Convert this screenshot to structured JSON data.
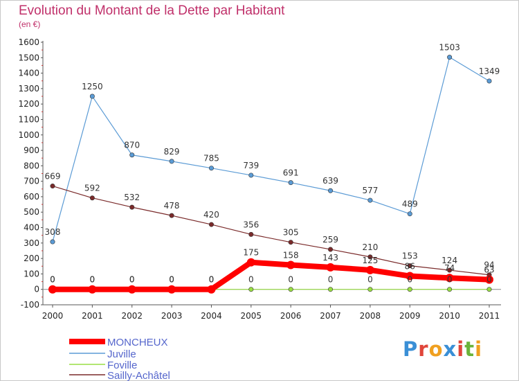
{
  "title": "Evolution du Montant de la Dette par Habitant",
  "subtitle": "(en €)",
  "chart_data": {
    "type": "line",
    "categories": [
      "2000",
      "2001",
      "2002",
      "2003",
      "2004",
      "2005",
      "2006",
      "2007",
      "2008",
      "2009",
      "2010",
      "2011"
    ],
    "ylim": [
      -100,
      1600
    ],
    "yticks": [
      -100,
      0,
      100,
      200,
      300,
      400,
      500,
      600,
      700,
      800,
      900,
      1000,
      1100,
      1200,
      1300,
      1400,
      1500,
      1600
    ],
    "grid": false,
    "legend_position": "bottom-left",
    "series": [
      {
        "name": "MONCHEUX",
        "color": "#ff0000",
        "values": [
          0,
          0,
          0,
          0,
          0,
          175,
          158,
          143,
          125,
          86,
          74,
          63
        ],
        "labels": [
          "0",
          "0",
          "0",
          "0",
          "0",
          "175",
          "158",
          "143",
          "125",
          "86",
          "74",
          "63"
        ]
      },
      {
        "name": "Juville",
        "color": "#5b9bd5",
        "values": [
          308,
          1250,
          870,
          829,
          785,
          739,
          691,
          639,
          577,
          489,
          1503,
          1349
        ],
        "labels": [
          "308",
          "1250",
          "870",
          "829",
          "785",
          "739",
          "691",
          "639",
          "577",
          "489",
          "1503",
          "1349"
        ]
      },
      {
        "name": "Foville",
        "color": "#99dd44",
        "values": [
          0,
          0,
          0,
          0,
          0,
          0,
          0,
          0,
          0,
          0,
          0,
          0
        ],
        "labels": [
          "0",
          "0",
          "0",
          "0",
          "0",
          "0",
          "0",
          "0",
          "0",
          "0",
          "0",
          "0"
        ]
      },
      {
        "name": "Sailly-Achâtel",
        "color": "#7a2a2a",
        "values": [
          669,
          592,
          532,
          478,
          420,
          356,
          305,
          259,
          210,
          153,
          124,
          94
        ],
        "labels": [
          "669",
          "592",
          "532",
          "478",
          "420",
          "356",
          "305",
          "259",
          "210",
          "153",
          "124",
          "94"
        ]
      }
    ]
  },
  "logo": {
    "letters": [
      "P",
      "r",
      "o",
      "x",
      "i",
      "t",
      "i"
    ],
    "colors": [
      "#3a8fd6",
      "#e0453a",
      "#f0a020",
      "#3a8fd6",
      "#e0453a",
      "#6bb33a",
      "#f0a020"
    ]
  }
}
